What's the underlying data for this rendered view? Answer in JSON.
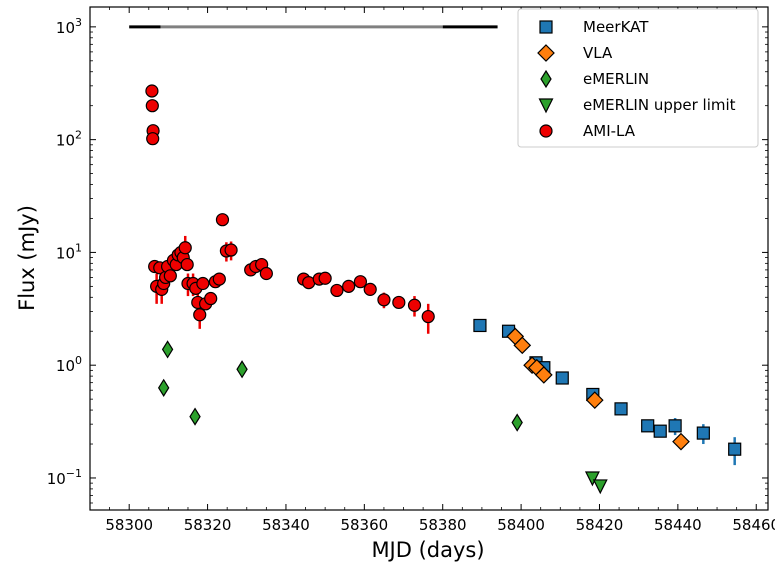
{
  "chart_data": {
    "type": "scatter",
    "xlabel": "MJD (days)",
    "ylabel": "Flux (mJy)",
    "xlim": [
      58290,
      58463
    ],
    "ylim": [
      0.052,
      1500
    ],
    "yscale": "log",
    "grid": false,
    "legend_position": "top-right",
    "xticks": [
      58300,
      58320,
      58340,
      58360,
      58380,
      58400,
      58420,
      58440,
      58460
    ],
    "xtick_labels": [
      "58300",
      "58320",
      "58340",
      "58360",
      "58380",
      "58400",
      "58420",
      "58440",
      "58460"
    ],
    "yticks": [
      0.1,
      1,
      10,
      100,
      1000
    ],
    "ytick_labels": [
      {
        "base": "10",
        "exp": "−1"
      },
      {
        "base": "10",
        "exp": "0"
      },
      {
        "base": "10",
        "exp": "1"
      },
      {
        "base": "10",
        "exp": "2"
      },
      {
        "base": "10",
        "exp": "3"
      }
    ],
    "horizontal_bar": {
      "y": 1000,
      "segments": [
        {
          "x0": 58300,
          "x1": 58308,
          "color": "#000000"
        },
        {
          "x0": 58308,
          "x1": 58380,
          "color": "#808080"
        },
        {
          "x0": 58380,
          "x1": 58394,
          "color": "#000000"
        }
      ]
    },
    "series": [
      {
        "name": "MeerKAT",
        "marker": "square",
        "color": "#1f77b4",
        "errcolor": "#1f77b4",
        "points": [
          {
            "x": 58389.5,
            "y": 2.25
          },
          {
            "x": 58396.8,
            "y": 2.0
          },
          {
            "x": 58403.8,
            "y": 1.05
          },
          {
            "x": 58405.8,
            "y": 0.95
          },
          {
            "x": 58410.5,
            "y": 0.77
          },
          {
            "x": 58418.3,
            "y": 0.55
          },
          {
            "x": 58425.5,
            "y": 0.41
          },
          {
            "x": 58432.3,
            "y": 0.29
          },
          {
            "x": 58435.5,
            "y": 0.26
          },
          {
            "x": 58439.3,
            "y": 0.29,
            "err": 0.05
          },
          {
            "x": 58446.5,
            "y": 0.25,
            "err": 0.05
          },
          {
            "x": 58454.5,
            "y": 0.18,
            "err": 0.05
          }
        ]
      },
      {
        "name": "VLA",
        "marker": "diamond",
        "color": "#ff7f0e",
        "errcolor": "#ff7f0e",
        "points": [
          {
            "x": 58398.5,
            "y": 1.8
          },
          {
            "x": 58400.3,
            "y": 1.5
          },
          {
            "x": 58402.8,
            "y": 1.0
          },
          {
            "x": 58404.0,
            "y": 0.95
          },
          {
            "x": 58405.8,
            "y": 0.82
          },
          {
            "x": 58418.8,
            "y": 0.49
          },
          {
            "x": 58440.8,
            "y": 0.21
          }
        ]
      },
      {
        "name": "eMERLIN",
        "marker": "thin_diamond",
        "color": "#2ca02c",
        "errcolor": "#2ca02c",
        "points": [
          {
            "x": 58308.8,
            "y": 0.63
          },
          {
            "x": 58309.8,
            "y": 1.38
          },
          {
            "x": 58316.8,
            "y": 0.35
          },
          {
            "x": 58328.8,
            "y": 0.92
          },
          {
            "x": 58399.0,
            "y": 0.31
          }
        ]
      },
      {
        "name": "eMERLIN upper limit",
        "marker": "triangle_down",
        "color": "#2ca02c",
        "errcolor": "#2ca02c",
        "points": [
          {
            "x": 58418.2,
            "y": 0.1
          },
          {
            "x": 58420.2,
            "y": 0.085
          }
        ]
      },
      {
        "name": "AMI-LA",
        "marker": "circle",
        "color": "#ee0000",
        "errcolor": "#ee0000",
        "points": [
          {
            "x": 58305.8,
            "y": 270
          },
          {
            "x": 58305.9,
            "y": 200
          },
          {
            "x": 58306.1,
            "y": 120
          },
          {
            "x": 58306.0,
            "y": 102
          },
          {
            "x": 58306.5,
            "y": 7.5
          },
          {
            "x": 58307.0,
            "y": 5.0,
            "err": 1.5
          },
          {
            "x": 58307.8,
            "y": 7.3
          },
          {
            "x": 58308.3,
            "y": 4.7,
            "err": 1.2
          },
          {
            "x": 58308.8,
            "y": 5.3
          },
          {
            "x": 58309.3,
            "y": 6.0
          },
          {
            "x": 58309.8,
            "y": 7.5
          },
          {
            "x": 58310.5,
            "y": 6.2
          },
          {
            "x": 58311.3,
            "y": 8.5
          },
          {
            "x": 58312.0,
            "y": 7.8
          },
          {
            "x": 58312.5,
            "y": 9.5
          },
          {
            "x": 58313.2,
            "y": 10.0
          },
          {
            "x": 58313.8,
            "y": 9.0
          },
          {
            "x": 58314.3,
            "y": 11.0,
            "err": 3.0
          },
          {
            "x": 58314.8,
            "y": 7.8
          },
          {
            "x": 58315.0,
            "y": 5.3,
            "err": 1.2
          },
          {
            "x": 58316.3,
            "y": 5.3,
            "err": 1.2
          },
          {
            "x": 58317.0,
            "y": 4.8
          },
          {
            "x": 58317.5,
            "y": 3.6,
            "err": 0.8
          },
          {
            "x": 58318.0,
            "y": 2.8,
            "err": 0.7
          },
          {
            "x": 58318.8,
            "y": 5.3
          },
          {
            "x": 58319.5,
            "y": 3.5
          },
          {
            "x": 58320.8,
            "y": 3.9
          },
          {
            "x": 58322.0,
            "y": 5.5
          },
          {
            "x": 58323.0,
            "y": 5.8
          },
          {
            "x": 58323.8,
            "y": 19.5
          },
          {
            "x": 58324.8,
            "y": 10.3,
            "err": 2.0
          },
          {
            "x": 58326.0,
            "y": 10.5,
            "err": 2.0
          },
          {
            "x": 58331.0,
            "y": 7.0
          },
          {
            "x": 58332.3,
            "y": 7.5
          },
          {
            "x": 58333.8,
            "y": 7.8
          },
          {
            "x": 58335.0,
            "y": 6.5
          },
          {
            "x": 58344.5,
            "y": 5.8
          },
          {
            "x": 58345.8,
            "y": 5.4
          },
          {
            "x": 58348.5,
            "y": 5.8
          },
          {
            "x": 58350.0,
            "y": 5.9
          },
          {
            "x": 58353.0,
            "y": 4.6
          },
          {
            "x": 58356.0,
            "y": 5.0
          },
          {
            "x": 58359.0,
            "y": 5.5
          },
          {
            "x": 58361.5,
            "y": 4.7
          },
          {
            "x": 58365.0,
            "y": 3.8,
            "err": 0.6
          },
          {
            "x": 58368.8,
            "y": 3.6
          },
          {
            "x": 58372.8,
            "y": 3.4,
            "err": 0.7
          },
          {
            "x": 58376.3,
            "y": 2.7,
            "err": 0.8
          }
        ]
      }
    ]
  }
}
